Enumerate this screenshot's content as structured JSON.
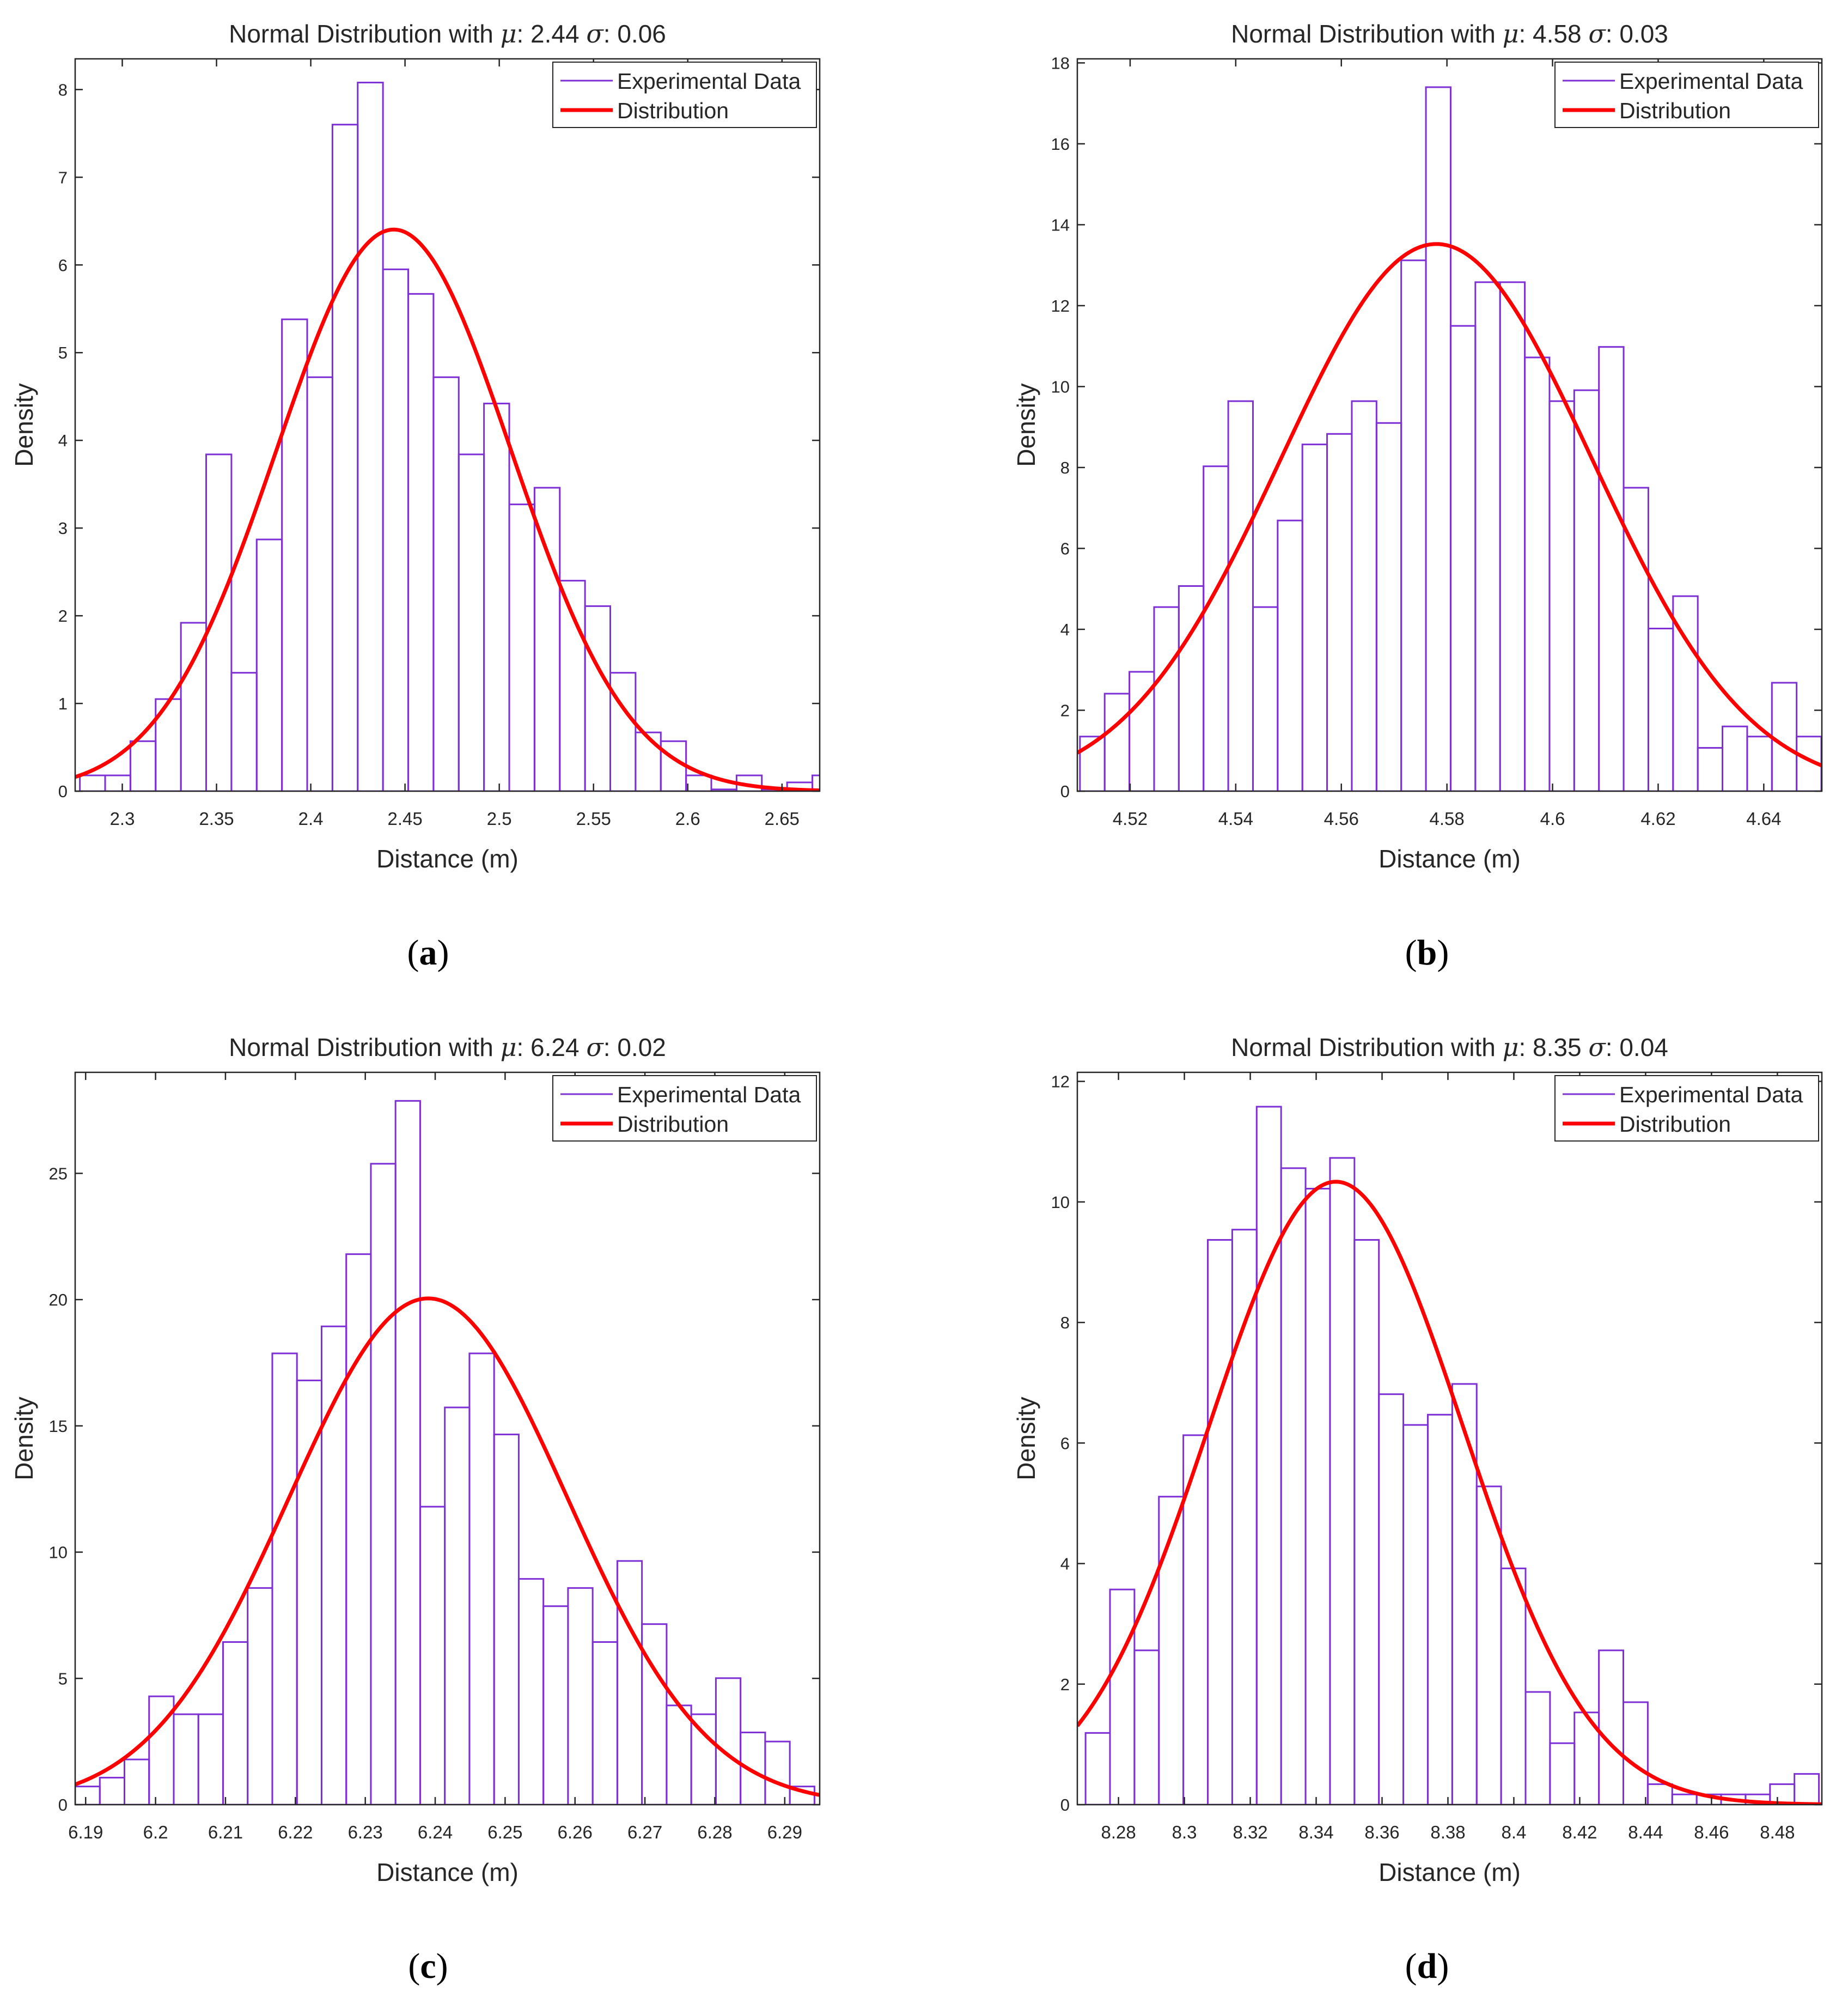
{
  "panels": [
    {
      "caption": "(a)",
      "chart_data": {
        "type": "bar",
        "title": "Normal Distribution with μ: 2.44 σ: 0.06",
        "title_parts": [
          "Normal Distribution with ",
          "μ",
          ": 2.44 ",
          "σ",
          ": 0.06"
        ],
        "xlabel": "Distance (m)",
        "ylabel": "Density",
        "xlim": [
          2.275,
          2.67
        ],
        "ylim": [
          0,
          8.35
        ],
        "xticks": [
          2.3,
          2.35,
          2.4,
          2.45,
          2.5,
          2.55,
          2.6,
          2.65
        ],
        "xtick_labels": [
          "2.3",
          "2.35",
          "2.4",
          "2.45",
          "2.5",
          "2.55",
          "2.6",
          "2.65"
        ],
        "yticks": [
          0,
          1,
          2,
          3,
          4,
          5,
          6,
          7,
          8
        ],
        "ytick_labels": [
          "0",
          "1",
          "2",
          "3",
          "4",
          "5",
          "6",
          "7",
          "8"
        ],
        "bin_start": 2.2775,
        "bin_width": 0.0134,
        "values": [
          0.18,
          0.18,
          0.57,
          1.05,
          1.92,
          3.84,
          1.35,
          2.87,
          5.38,
          4.72,
          7.6,
          8.08,
          5.95,
          5.67,
          4.72,
          3.84,
          4.42,
          3.27,
          3.46,
          2.4,
          2.11,
          1.35,
          0.67,
          0.57,
          0.18,
          0.02,
          0.18,
          0.02,
          0.1,
          0.18
        ],
        "fit": {
          "mean": 2.444,
          "std": 0.0623
        },
        "series": [
          {
            "name": "Experimental Data",
            "color": "#7e2fd6"
          },
          {
            "name": "Distribution",
            "color": "#ff0000"
          }
        ],
        "legend": "top-right",
        "grid": false
      }
    },
    {
      "caption": "(b)",
      "chart_data": {
        "type": "bar",
        "title": "Normal Distribution with μ: 4.58 σ: 0.03",
        "title_parts": [
          "Normal Distribution with ",
          "μ",
          ": 4.58 ",
          "σ",
          ": 0.03"
        ],
        "xlabel": "Distance (m)",
        "ylabel": "Density",
        "xlim": [
          4.51,
          4.651
        ],
        "ylim": [
          0,
          18.1
        ],
        "xticks": [
          4.52,
          4.54,
          4.56,
          4.58,
          4.6,
          4.62,
          4.64
        ],
        "xtick_labels": [
          "4.52",
          "4.54",
          "4.56",
          "4.58",
          "4.6",
          "4.62",
          "4.64"
        ],
        "yticks": [
          0,
          2,
          4,
          6,
          8,
          10,
          12,
          14,
          16,
          18
        ],
        "ytick_labels": [
          "0",
          "2",
          "4",
          "6",
          "8",
          "10",
          "12",
          "14",
          "16",
          "18"
        ],
        "bin_start": 4.5105,
        "bin_width": 0.00468,
        "values": [
          1.35,
          2.41,
          2.95,
          4.55,
          5.07,
          8.03,
          9.64,
          4.55,
          6.69,
          8.57,
          8.83,
          9.64,
          9.1,
          13.12,
          17.4,
          11.5,
          12.58,
          12.58,
          10.72,
          9.64,
          9.91,
          10.98,
          7.5,
          4.02,
          4.82,
          1.07,
          1.6,
          1.35,
          2.68,
          1.35
        ],
        "fit": {
          "mean": 4.578,
          "std": 0.0295
        },
        "series": [
          {
            "name": "Experimental Data",
            "color": "#7e2fd6"
          },
          {
            "name": "Distribution",
            "color": "#ff0000"
          }
        ],
        "legend": "top-right",
        "grid": false
      }
    },
    {
      "caption": "(c)",
      "chart_data": {
        "type": "bar",
        "title": "Normal Distribution with μ: 6.24 σ: 0.02",
        "title_parts": [
          "Normal Distribution with ",
          "μ",
          ": 6.24 ",
          "σ",
          ": 0.02"
        ],
        "xlabel": "Distance (m)",
        "ylabel": "Density",
        "xlim": [
          6.1885,
          6.295
        ],
        "ylim": [
          0,
          29
        ],
        "xticks": [
          6.19,
          6.2,
          6.21,
          6.22,
          6.23,
          6.24,
          6.25,
          6.26,
          6.27,
          6.28,
          6.29
        ],
        "xtick_labels": [
          "6.19",
          "6.2",
          "6.21",
          "6.22",
          "6.23",
          "6.24",
          "6.25",
          "6.26",
          "6.27",
          "6.28",
          "6.29"
        ],
        "yticks": [
          0,
          5,
          10,
          15,
          20,
          25
        ],
        "ytick_labels": [
          "0",
          "5",
          "10",
          "15",
          "20",
          "25"
        ],
        "bin_start": 6.1885,
        "bin_width": 0.003525,
        "values": [
          0.72,
          1.07,
          1.79,
          4.29,
          3.58,
          3.58,
          6.44,
          8.58,
          17.87,
          16.8,
          18.94,
          21.8,
          25.38,
          27.87,
          11.8,
          15.73,
          17.87,
          14.66,
          8.94,
          7.86,
          8.58,
          6.44,
          9.65,
          7.15,
          3.93,
          3.58,
          5.01,
          2.86,
          2.5,
          0.72
        ],
        "fit": {
          "mean": 6.239,
          "std": 0.0199
        },
        "series": [
          {
            "name": "Experimental Data",
            "color": "#7e2fd6"
          },
          {
            "name": "Distribution",
            "color": "#ff0000"
          }
        ],
        "legend": "top-right",
        "grid": false
      }
    },
    {
      "caption": "(d)",
      "chart_data": {
        "type": "bar",
        "title": "Normal Distribution with μ: 8.35 σ: 0.04",
        "title_parts": [
          "Normal Distribution with ",
          "μ",
          ": 8.35 ",
          "σ",
          ": 0.04"
        ],
        "xlabel": "Distance (m)",
        "ylabel": "Density",
        "xlim": [
          8.2675,
          8.4935
        ],
        "ylim": [
          0,
          12.15
        ],
        "xticks": [
          8.28,
          8.3,
          8.32,
          8.34,
          8.36,
          8.38,
          8.4,
          8.42,
          8.44,
          8.46,
          8.48
        ],
        "xtick_labels": [
          "8.28",
          "8.3",
          "8.32",
          "8.34",
          "8.36",
          "8.38",
          "8.4",
          "8.42",
          "8.44",
          "8.46",
          "8.48"
        ],
        "yticks": [
          0,
          2,
          4,
          6,
          8,
          10,
          12
        ],
        "ytick_labels": [
          "0",
          "2",
          "4",
          "6",
          "8",
          "10",
          "12"
        ],
        "bin_start": 8.27,
        "bin_width": 0.00742,
        "values": [
          1.19,
          3.57,
          2.56,
          5.11,
          6.13,
          9.37,
          9.54,
          11.58,
          10.56,
          10.22,
          10.73,
          9.37,
          6.81,
          6.3,
          6.47,
          6.98,
          5.28,
          3.92,
          1.87,
          1.02,
          1.53,
          2.56,
          1.7,
          0.34,
          0.17,
          0.17,
          0.17,
          0.17,
          0.34,
          0.51
        ],
        "fit": {
          "mean": 8.346,
          "std": 0.0386
        },
        "series": [
          {
            "name": "Experimental Data",
            "color": "#7e2fd6"
          },
          {
            "name": "Distribution",
            "color": "#ff0000"
          }
        ],
        "legend": "top-right",
        "grid": false
      }
    }
  ]
}
